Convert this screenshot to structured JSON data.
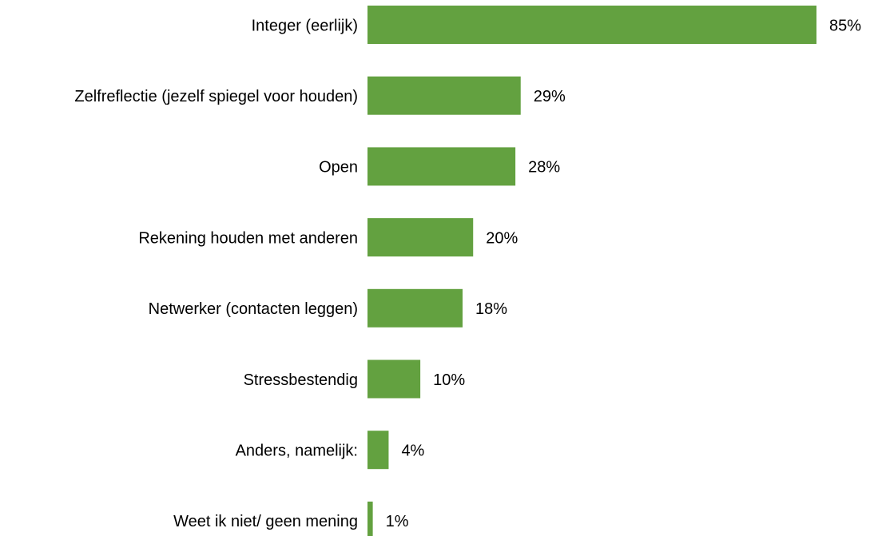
{
  "chart_data": {
    "type": "bar",
    "orientation": "horizontal",
    "categories": [
      "Integer (eerlijk)",
      "Zelfreflectie (jezelf spiegel voor houden)",
      "Open",
      "Rekening houden met anderen",
      "Netwerker (contacten leggen)",
      "Stressbestendig",
      "Anders, namelijk:",
      "Weet ik niet/ geen mening"
    ],
    "values": [
      85,
      29,
      28,
      20,
      18,
      10,
      4,
      1
    ],
    "value_labels": [
      "85%",
      "29%",
      "28%",
      "20%",
      "18%",
      "10%",
      "4%",
      "1%"
    ],
    "color": "#63a140"
  }
}
